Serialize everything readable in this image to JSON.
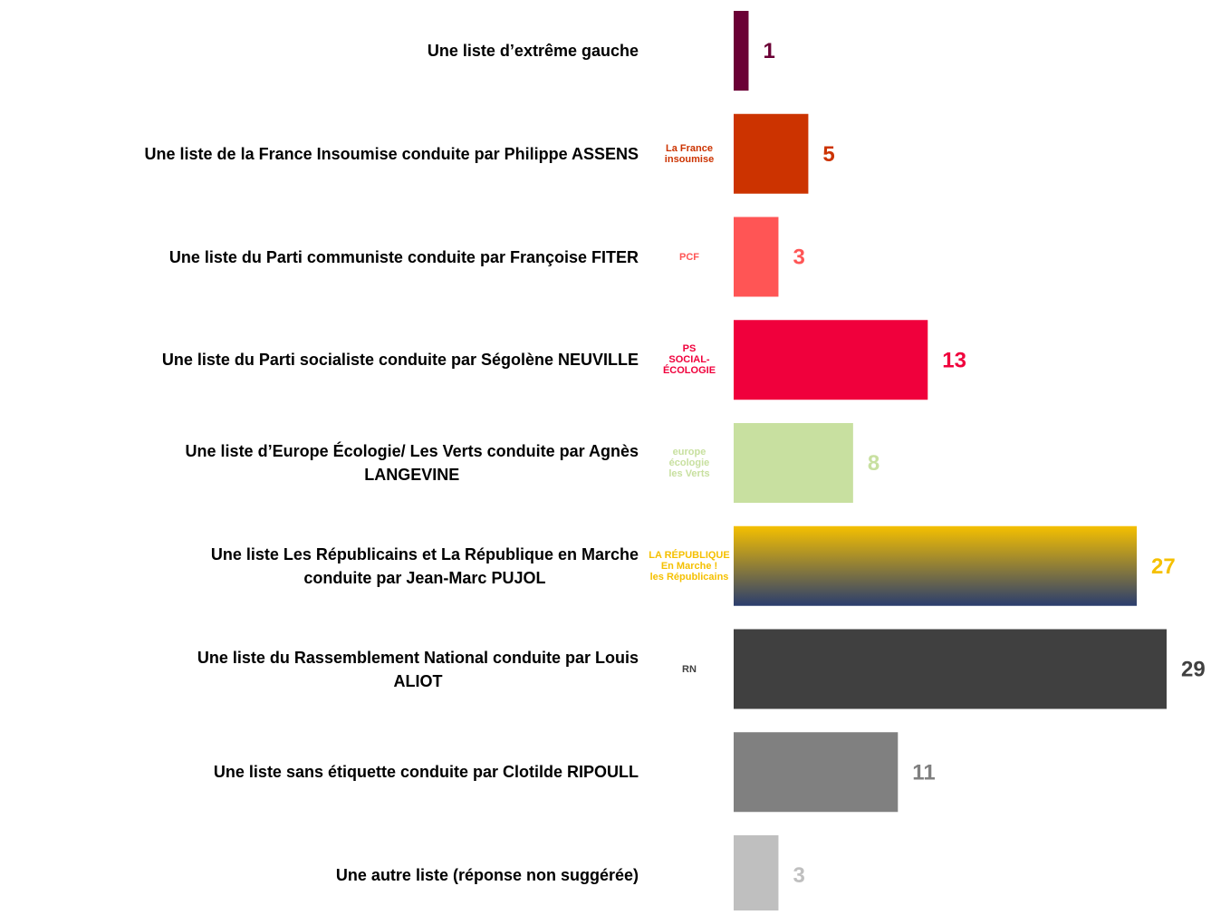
{
  "chart_data": {
    "type": "hbar",
    "categories": [
      "Une liste d’extrême gauche",
      "Une liste de la France Insoumise conduite par Philippe ASSENS",
      "Une liste du Parti communiste conduite par Françoise FITER",
      "Une liste du Parti socialiste conduite par Ségolène NEUVILLE",
      "Une liste d’Europe Écologie/ Les Verts conduite par Agnès\nLANGEVINE",
      "Une liste Les Républicains et La République en Marche\nconduite par Jean-Marc PUJOL",
      "Une liste du Rassemblement National conduite par Louis\nALIOT",
      "Une liste sans étiquette conduite par Clotilde RIPOULL",
      "Une autre liste (réponse non suggérée)"
    ],
    "values": [
      1,
      5,
      3,
      13,
      8,
      27,
      29,
      11,
      3
    ],
    "colors": [
      "#6b0035",
      "#cc3300",
      "#ff5555",
      "#f0003c",
      "#c8e0a0",
      [
        "#f5c000",
        "#2a3d6e"
      ],
      "#404040",
      "#808080",
      "#bfbfbf"
    ],
    "logos": [
      null,
      "La France\ninsoumise",
      "PCF",
      "PS\nSOCIAL-ÉCOLOGIE",
      "europe\nécologie\nles Verts",
      "LA RÉPUBLIQUE\nEn Marche !\nles Républicains",
      "RN",
      null,
      null
    ],
    "xlim": [
      0,
      29
    ]
  }
}
